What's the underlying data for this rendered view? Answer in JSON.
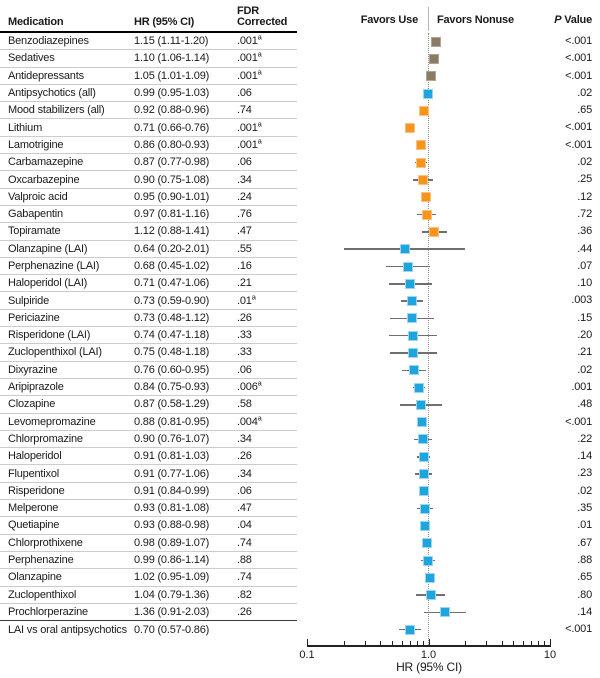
{
  "chart_data": {
    "type": "scatter",
    "subtype": "forest-plot",
    "x_scale": "log",
    "xlim": [
      0.1,
      10
    ],
    "grid": false,
    "header": {
      "medication": "Medication",
      "hr": "HR (95% CI)",
      "fdr_line1": "FDR",
      "fdr_line2": "Corrected",
      "favors_left": "Favors Use",
      "favors_right": "Favors Nonuse",
      "p_italic": "P",
      "p_rest": " Value"
    },
    "axis": {
      "min_label": "0.1",
      "mid_label": "1.0",
      "max_label": "10",
      "xlabel": "HR (95% CI)",
      "tick_values": [
        0.1,
        0.2,
        0.3,
        0.4,
        0.5,
        0.6,
        0.7,
        0.8,
        0.9,
        1,
        2,
        3,
        4,
        5,
        6,
        7,
        8,
        9,
        10
      ],
      "major_ticks": [
        0.1,
        1,
        10
      ]
    },
    "colors": {
      "taupe": {
        "fill": "#8a7b65",
        "border": "#b1a693"
      },
      "blue": {
        "fill": "#1ea5dd",
        "border": "#9ad5f2"
      },
      "orange": {
        "fill": "#f7941e",
        "border": "#fbc27d"
      },
      "whisker": "#6f6f6f",
      "reference_line": "#8f8f8f"
    },
    "rows": [
      {
        "medication": "Benzodiazepines",
        "hr_text": "1.15 (1.11-1.20)",
        "fdr": ".001",
        "fdr_sup": "a",
        "p": "<.001",
        "hr": 1.15,
        "lo": 1.11,
        "hi": 1.2,
        "color": "taupe"
      },
      {
        "medication": "Sedatives",
        "hr_text": "1.10 (1.06-1.14)",
        "fdr": ".001",
        "fdr_sup": "a",
        "p": "<.001",
        "hr": 1.1,
        "lo": 1.06,
        "hi": 1.14,
        "color": "taupe"
      },
      {
        "medication": "Antidepressants",
        "hr_text": "1.05 (1.01-1.09)",
        "fdr": ".001",
        "fdr_sup": "a",
        "p": "<.001",
        "hr": 1.05,
        "lo": 1.01,
        "hi": 1.09,
        "color": "taupe"
      },
      {
        "medication": "Antipsychotics (all)",
        "hr_text": "0.99 (0.95-1.03)",
        "fdr": ".06",
        "fdr_sup": "",
        "p": ".02",
        "hr": 0.99,
        "lo": 0.95,
        "hi": 1.03,
        "color": "blue"
      },
      {
        "medication": "Mood stabilizers (all)",
        "hr_text": "0.92 (0.88-0.96)",
        "fdr": ".74",
        "fdr_sup": "",
        "p": ".65",
        "hr": 0.92,
        "lo": 0.88,
        "hi": 0.96,
        "color": "orange"
      },
      {
        "medication": "Lithium",
        "hr_text": "0.71 (0.66-0.76)",
        "fdr": ".001",
        "fdr_sup": "a",
        "p": "<.001",
        "hr": 0.71,
        "lo": 0.66,
        "hi": 0.76,
        "color": "orange"
      },
      {
        "medication": "Lamotrigine",
        "hr_text": "0.86 (0.80-0.93)",
        "fdr": ".001",
        "fdr_sup": "a",
        "p": "<.001",
        "hr": 0.86,
        "lo": 0.8,
        "hi": 0.93,
        "color": "orange"
      },
      {
        "medication": "Carbamazepine",
        "hr_text": "0.87 (0.77-0.98)",
        "fdr": ".06",
        "fdr_sup": "",
        "p": ".02",
        "hr": 0.87,
        "lo": 0.77,
        "hi": 0.98,
        "color": "orange"
      },
      {
        "medication": "Oxcarbazepine",
        "hr_text": "0.90 (0.75-1.08)",
        "fdr": ".34",
        "fdr_sup": "",
        "p": ".25",
        "hr": 0.9,
        "lo": 0.75,
        "hi": 1.08,
        "color": "orange"
      },
      {
        "medication": "Valproic acid",
        "hr_text": "0.95 (0.90-1.01)",
        "fdr": ".24",
        "fdr_sup": "",
        "p": ".12",
        "hr": 0.95,
        "lo": 0.9,
        "hi": 1.01,
        "color": "orange"
      },
      {
        "medication": "Gabapentin",
        "hr_text": "0.97 (0.81-1.16)",
        "fdr": ".76",
        "fdr_sup": "",
        "p": ".72",
        "hr": 0.97,
        "lo": 0.81,
        "hi": 1.16,
        "color": "orange"
      },
      {
        "medication": "Topiramate",
        "hr_text": "1.12 (0.88-1.41)",
        "fdr": ".47",
        "fdr_sup": "",
        "p": ".36",
        "hr": 1.12,
        "lo": 0.88,
        "hi": 1.41,
        "color": "orange"
      },
      {
        "medication": "Olanzapine (LAI)",
        "hr_text": "0.64 (0.20-2.01)",
        "fdr": ".55",
        "fdr_sup": "",
        "p": ".44",
        "hr": 0.64,
        "lo": 0.2,
        "hi": 2.01,
        "color": "blue"
      },
      {
        "medication": "Perphenazine (LAI)",
        "hr_text": "0.68 (0.45-1.02)",
        "fdr": ".16",
        "fdr_sup": "",
        "p": ".07",
        "hr": 0.68,
        "lo": 0.45,
        "hi": 1.02,
        "color": "blue"
      },
      {
        "medication": "Haloperidol (LAI)",
        "hr_text": "0.71 (0.47-1.06)",
        "fdr": ".21",
        "fdr_sup": "",
        "p": ".10",
        "hr": 0.71,
        "lo": 0.47,
        "hi": 1.06,
        "color": "blue"
      },
      {
        "medication": "Sulpiride",
        "hr_text": "0.73 (0.59-0.90)",
        "fdr": ".01",
        "fdr_sup": "a",
        "p": ".003",
        "hr": 0.73,
        "lo": 0.59,
        "hi": 0.9,
        "color": "blue"
      },
      {
        "medication": "Periciazine",
        "hr_text": "0.73 (0.48-1.12)",
        "fdr": ".26",
        "fdr_sup": "",
        "p": ".15",
        "hr": 0.73,
        "lo": 0.48,
        "hi": 1.12,
        "color": "blue"
      },
      {
        "medication": "Risperidone (LAI)",
        "hr_text": "0.74 (0.47-1.18)",
        "fdr": ".33",
        "fdr_sup": "",
        "p": ".20",
        "hr": 0.74,
        "lo": 0.47,
        "hi": 1.18,
        "color": "blue"
      },
      {
        "medication": "Zuclopenthixol (LAI)",
        "hr_text": "0.75 (0.48-1.18)",
        "fdr": ".33",
        "fdr_sup": "",
        "p": ".21",
        "hr": 0.75,
        "lo": 0.48,
        "hi": 1.18,
        "color": "blue"
      },
      {
        "medication": "Dixyrazine",
        "hr_text": "0.76 (0.60-0.95)",
        "fdr": ".06",
        "fdr_sup": "",
        "p": ".02",
        "hr": 0.76,
        "lo": 0.6,
        "hi": 0.95,
        "color": "blue"
      },
      {
        "medication": "Aripiprazole",
        "hr_text": "0.84 (0.75-0.93)",
        "fdr": ".006",
        "fdr_sup": "a",
        "p": ".001",
        "hr": 0.84,
        "lo": 0.75,
        "hi": 0.93,
        "color": "blue"
      },
      {
        "medication": "Clozapine",
        "hr_text": "0.87 (0.58-1.29)",
        "fdr": ".58",
        "fdr_sup": "",
        "p": ".48",
        "hr": 0.87,
        "lo": 0.58,
        "hi": 1.29,
        "color": "blue"
      },
      {
        "medication": "Levomepromazine",
        "hr_text": "0.88 (0.81-0.95)",
        "fdr": ".004",
        "fdr_sup": "a",
        "p": "<.001",
        "hr": 0.88,
        "lo": 0.81,
        "hi": 0.95,
        "color": "blue"
      },
      {
        "medication": "Chlorpromazine",
        "hr_text": "0.90 (0.76-1.07)",
        "fdr": ".34",
        "fdr_sup": "",
        "p": ".22",
        "hr": 0.9,
        "lo": 0.76,
        "hi": 1.07,
        "color": "blue"
      },
      {
        "medication": "Haloperidol",
        "hr_text": "0.91 (0.81-1.03)",
        "fdr": ".26",
        "fdr_sup": "",
        "p": ".14",
        "hr": 0.91,
        "lo": 0.81,
        "hi": 1.03,
        "color": "blue"
      },
      {
        "medication": "Flupentixol",
        "hr_text": "0.91 (0.77-1.06)",
        "fdr": ".34",
        "fdr_sup": "",
        "p": ".23",
        "hr": 0.91,
        "lo": 0.77,
        "hi": 1.06,
        "color": "blue"
      },
      {
        "medication": "Risperidone",
        "hr_text": "0.91 (0.84-0.99)",
        "fdr": ".06",
        "fdr_sup": "",
        "p": ".02",
        "hr": 0.91,
        "lo": 0.84,
        "hi": 0.99,
        "color": "blue"
      },
      {
        "medication": "Melperone",
        "hr_text": "0.93 (0.81-1.08)",
        "fdr": ".47",
        "fdr_sup": "",
        "p": ".35",
        "hr": 0.93,
        "lo": 0.81,
        "hi": 1.08,
        "color": "blue"
      },
      {
        "medication": "Quetiapine",
        "hr_text": "0.93 (0.88-0.98)",
        "fdr": ".04",
        "fdr_sup": "",
        "p": ".01",
        "hr": 0.93,
        "lo": 0.88,
        "hi": 0.98,
        "color": "blue"
      },
      {
        "medication": "Chlorprothixene",
        "hr_text": "0.98 (0.89-1.07)",
        "fdr": ".74",
        "fdr_sup": "",
        "p": ".67",
        "hr": 0.98,
        "lo": 0.89,
        "hi": 1.07,
        "color": "blue"
      },
      {
        "medication": "Perphenazine",
        "hr_text": "0.99 (0.86-1.14)",
        "fdr": ".88",
        "fdr_sup": "",
        "p": ".88",
        "hr": 0.99,
        "lo": 0.86,
        "hi": 1.14,
        "color": "blue"
      },
      {
        "medication": "Olanzapine",
        "hr_text": "1.02 (0.95-1.09)",
        "fdr": ".74",
        "fdr_sup": "",
        "p": ".65",
        "hr": 1.02,
        "lo": 0.95,
        "hi": 1.09,
        "color": "blue"
      },
      {
        "medication": "Zuclopenthixol",
        "hr_text": "1.04 (0.79-1.36)",
        "fdr": ".82",
        "fdr_sup": "",
        "p": ".80",
        "hr": 1.04,
        "lo": 0.79,
        "hi": 1.36,
        "color": "blue"
      },
      {
        "medication": "Prochlorperazine",
        "hr_text": "1.36 (0.91-2.03)",
        "fdr": ".26",
        "fdr_sup": "",
        "p": ".14",
        "hr": 1.36,
        "lo": 0.91,
        "hi": 2.03,
        "color": "blue"
      },
      {
        "medication": "LAI vs oral antipsychotics",
        "hr_text": "0.70 (0.57-0.86)",
        "fdr": "",
        "fdr_sup": "",
        "p": "<.001",
        "hr": 0.7,
        "lo": 0.57,
        "hi": 0.86,
        "color": "blue"
      }
    ]
  }
}
